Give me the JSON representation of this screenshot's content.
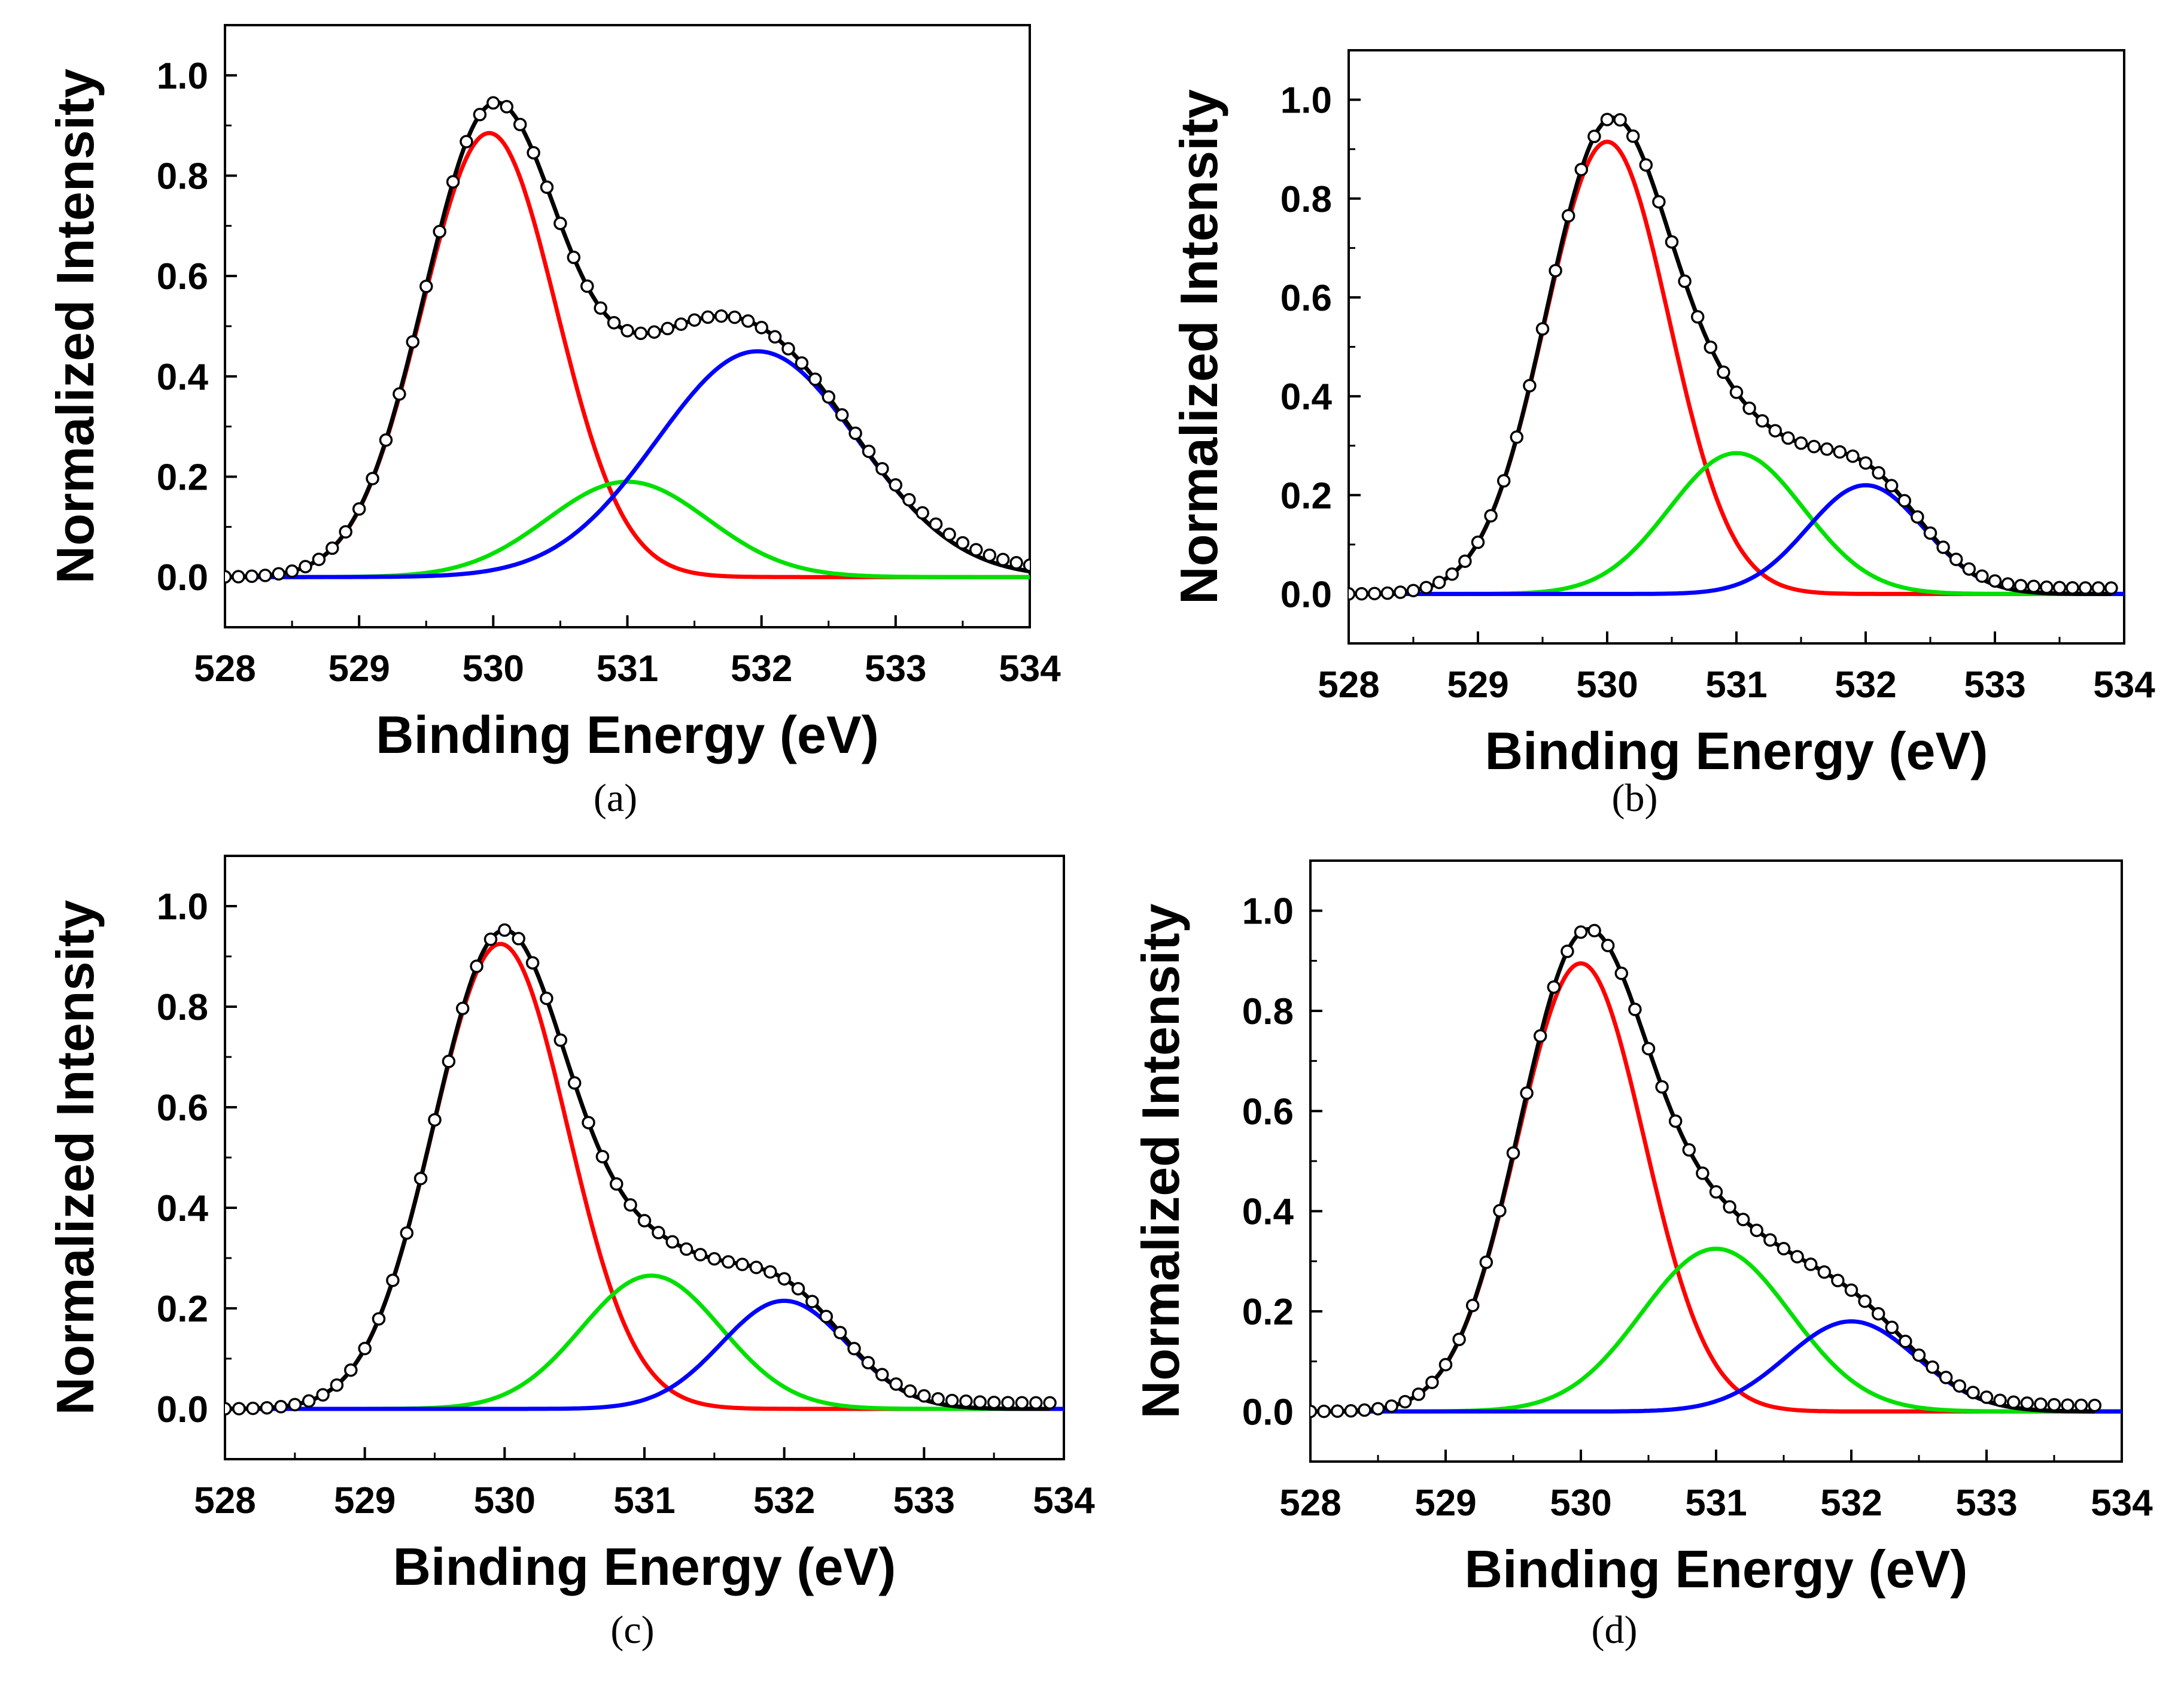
{
  "figure": {
    "panels": [
      "a",
      "b",
      "c",
      "d"
    ]
  },
  "chart_data": [
    {
      "id": "a",
      "panel_label": "(a)",
      "type": "line",
      "xlabel": "Binding Energy (eV)",
      "ylabel": "Normalized Intensity",
      "xlim": [
        528,
        534
      ],
      "ylim": [
        -0.1,
        1.1
      ],
      "xticks": [
        528,
        529,
        530,
        531,
        532,
        533,
        534
      ],
      "yticks": [
        0.0,
        0.2,
        0.4,
        0.6,
        0.8,
        1.0
      ],
      "xtick_labels": [
        "528",
        "529",
        "530",
        "531",
        "532",
        "533",
        "534"
      ],
      "ytick_labels": [
        "0.0",
        "0.2",
        "0.4",
        "0.6",
        "0.8",
        "1.0"
      ],
      "peaks": [
        {
          "color": "#ff0000",
          "center": 529.97,
          "height": 0.885,
          "sigma": 0.5
        },
        {
          "color": "#00e000",
          "center": 531.0,
          "height": 0.19,
          "sigma": 0.6
        },
        {
          "color": "#0000ff",
          "center": 531.97,
          "height": 0.45,
          "sigma": 0.75
        }
      ],
      "data_x_range": [
        528.0,
        534.0
      ]
    },
    {
      "id": "b",
      "panel_label": "(b)",
      "type": "line",
      "xlabel": "Binding Energy (eV)",
      "ylabel": "Normalized Intensity",
      "xlim": [
        528,
        534
      ],
      "ylim": [
        -0.1,
        1.1
      ],
      "xticks": [
        528,
        529,
        530,
        531,
        532,
        533,
        534
      ],
      "yticks": [
        0.0,
        0.2,
        0.4,
        0.6,
        0.8,
        1.0
      ],
      "xtick_labels": [
        "528",
        "529",
        "530",
        "531",
        "532",
        "533",
        "534"
      ],
      "ytick_labels": [
        "0.0",
        "0.2",
        "0.4",
        "0.6",
        "0.8",
        "1.0"
      ],
      "peaks": [
        {
          "color": "#ff0000",
          "center": 530.0,
          "height": 0.915,
          "sigma": 0.48
        },
        {
          "color": "#00e000",
          "center": 531.0,
          "height": 0.285,
          "sigma": 0.52
        },
        {
          "color": "#0000ff",
          "center": 532.0,
          "height": 0.22,
          "sigma": 0.45
        }
      ],
      "data_x_range": [
        528.0,
        533.9
      ]
    },
    {
      "id": "c",
      "panel_label": "(c)",
      "type": "line",
      "xlabel": "Binding Energy (eV)",
      "ylabel": "Normalized Intensity",
      "xlim": [
        528,
        534
      ],
      "ylim": [
        -0.1,
        1.1
      ],
      "xticks": [
        528,
        529,
        530,
        531,
        532,
        533,
        534
      ],
      "yticks": [
        0.0,
        0.2,
        0.4,
        0.6,
        0.8,
        1.0
      ],
      "xtick_labels": [
        "528",
        "529",
        "530",
        "531",
        "532",
        "533",
        "534"
      ],
      "ytick_labels": [
        "0.0",
        "0.2",
        "0.4",
        "0.6",
        "0.8",
        "1.0"
      ],
      "peaks": [
        {
          "color": "#ff0000",
          "center": 529.97,
          "height": 0.925,
          "sigma": 0.48
        },
        {
          "color": "#00e000",
          "center": 531.05,
          "height": 0.265,
          "sigma": 0.5
        },
        {
          "color": "#0000ff",
          "center": 532.0,
          "height": 0.215,
          "sigma": 0.45
        }
      ],
      "data_x_range": [
        528.0,
        533.9
      ]
    },
    {
      "id": "d",
      "panel_label": "(d)",
      "type": "line",
      "xlabel": "Binding Energy (eV)",
      "ylabel": "Normalized Intensity",
      "xlim": [
        528,
        534
      ],
      "ylim": [
        -0.1,
        1.1
      ],
      "xticks": [
        528,
        529,
        530,
        531,
        532,
        533,
        534
      ],
      "yticks": [
        0.0,
        0.2,
        0.4,
        0.6,
        0.8,
        1.0
      ],
      "xtick_labels": [
        "528",
        "529",
        "530",
        "531",
        "532",
        "533",
        "534"
      ],
      "ytick_labels": [
        "0.0",
        "0.2",
        "0.4",
        "0.6",
        "0.8",
        "1.0"
      ],
      "peaks": [
        {
          "color": "#ff0000",
          "center": 530.0,
          "height": 0.895,
          "sigma": 0.47
        },
        {
          "color": "#00e000",
          "center": 531.0,
          "height": 0.325,
          "sigma": 0.55
        },
        {
          "color": "#0000ff",
          "center": 532.0,
          "height": 0.18,
          "sigma": 0.48
        }
      ],
      "data_x_range": [
        528.0,
        533.8
      ]
    }
  ]
}
